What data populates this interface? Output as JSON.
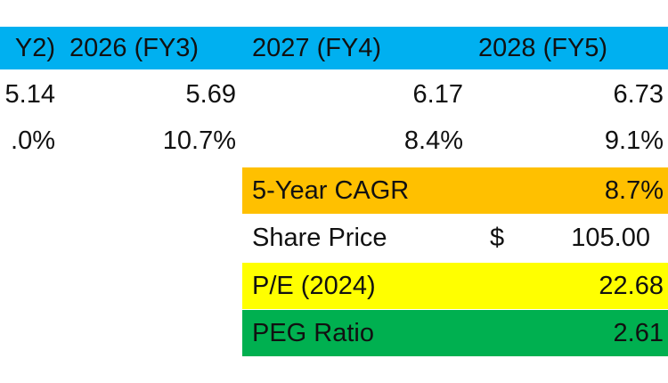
{
  "table": {
    "header": [
      "Y2)",
      "2026 (FY3)",
      "2027 (FY4)",
      "2028 (FY5)"
    ],
    "rows": [
      [
        "5.14",
        "5.69",
        "6.17",
        "6.73"
      ],
      [
        ".0%",
        "10.7%",
        "8.4%",
        "9.1%"
      ]
    ]
  },
  "summary": [
    {
      "label": "5-Year CAGR",
      "value": "8.7%"
    },
    {
      "label": "Share Price",
      "currency": "$",
      "value": "105.00"
    },
    {
      "label": "P/E (2024)",
      "value": "22.68"
    },
    {
      "label": "PEG Ratio",
      "value": "2.61"
    }
  ]
}
